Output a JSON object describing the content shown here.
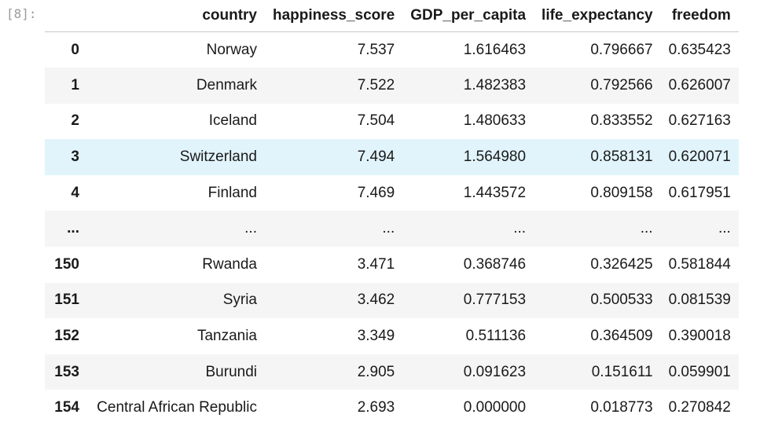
{
  "cell": {
    "prompt": "[8]:"
  },
  "table": {
    "columns": [
      "",
      "country",
      "happiness_score",
      "GDP_per_capita",
      "life_expectancy",
      "freedom"
    ],
    "rows": [
      {
        "index": "0",
        "country": "Norway",
        "happiness_score": "7.537",
        "GDP_per_capita": "1.616463",
        "life_expectancy": "0.796667",
        "freedom": "0.635423"
      },
      {
        "index": "1",
        "country": "Denmark",
        "happiness_score": "7.522",
        "GDP_per_capita": "1.482383",
        "life_expectancy": "0.792566",
        "freedom": "0.626007"
      },
      {
        "index": "2",
        "country": "Iceland",
        "happiness_score": "7.504",
        "GDP_per_capita": "1.480633",
        "life_expectancy": "0.833552",
        "freedom": "0.627163"
      },
      {
        "index": "3",
        "country": "Switzerland",
        "happiness_score": "7.494",
        "GDP_per_capita": "1.564980",
        "life_expectancy": "0.858131",
        "freedom": "0.620071"
      },
      {
        "index": "4",
        "country": "Finland",
        "happiness_score": "7.469",
        "GDP_per_capita": "1.443572",
        "life_expectancy": "0.809158",
        "freedom": "0.617951"
      },
      {
        "index": "...",
        "country": "...",
        "happiness_score": "...",
        "GDP_per_capita": "...",
        "life_expectancy": "...",
        "freedom": "..."
      },
      {
        "index": "150",
        "country": "Rwanda",
        "happiness_score": "3.471",
        "GDP_per_capita": "0.368746",
        "life_expectancy": "0.326425",
        "freedom": "0.581844"
      },
      {
        "index": "151",
        "country": "Syria",
        "happiness_score": "3.462",
        "GDP_per_capita": "0.777153",
        "life_expectancy": "0.500533",
        "freedom": "0.081539"
      },
      {
        "index": "152",
        "country": "Tanzania",
        "happiness_score": "3.349",
        "GDP_per_capita": "0.511136",
        "life_expectancy": "0.364509",
        "freedom": "0.390018"
      },
      {
        "index": "153",
        "country": "Burundi",
        "happiness_score": "2.905",
        "GDP_per_capita": "0.091623",
        "life_expectancy": "0.151611",
        "freedom": "0.059901"
      },
      {
        "index": "154",
        "country": "Central African Republic",
        "happiness_score": "2.693",
        "GDP_per_capita": "0.000000",
        "life_expectancy": "0.018773",
        "freedom": "0.270842"
      }
    ]
  },
  "colors": {
    "hover_row": "#e1f4fb",
    "stripe_row": "#f5f5f5",
    "prompt_text": "#9a9a9a"
  }
}
